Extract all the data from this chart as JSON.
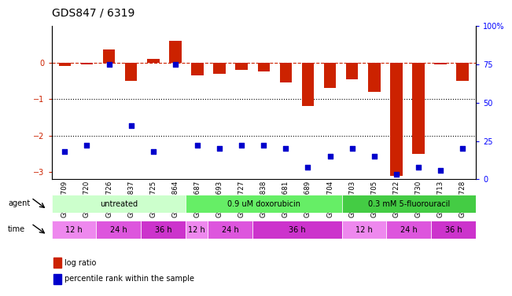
{
  "title": "GDS847 / 6319",
  "samples": [
    "GSM11709",
    "GSM11720",
    "GSM11726",
    "GSM11837",
    "GSM11725",
    "GSM11864",
    "GSM11687",
    "GSM11693",
    "GSM11727",
    "GSM11838",
    "GSM11681",
    "GSM11689",
    "GSM11704",
    "GSM11703",
    "GSM11705",
    "GSM11722",
    "GSM11730",
    "GSM11713",
    "GSM11728"
  ],
  "log_ratio": [
    -0.1,
    -0.05,
    0.35,
    -0.5,
    0.1,
    0.6,
    -0.35,
    -0.3,
    -0.2,
    -0.25,
    -0.55,
    -1.2,
    -0.7,
    -0.45,
    -0.8,
    -3.1,
    -2.5,
    -0.05,
    -0.5
  ],
  "percentile_rank": [
    18,
    22,
    75,
    35,
    18,
    75,
    22,
    20,
    22,
    22,
    20,
    8,
    15,
    20,
    15,
    3,
    8,
    6,
    20
  ],
  "bar_color": "#cc2200",
  "dot_color": "#0000cc",
  "ylim_left": [
    -3.2,
    1.0
  ],
  "ylim_right": [
    0,
    100
  ],
  "yticks_left": [
    0,
    -1,
    -2,
    -3
  ],
  "yticks_right": [
    0,
    25,
    50,
    75,
    100
  ],
  "dotted_lines": [
    -1,
    -2
  ],
  "agent_groups": [
    {
      "label": "untreated",
      "start": 0,
      "end": 6,
      "color": "#ccffcc"
    },
    {
      "label": "0.9 uM doxorubicin",
      "start": 6,
      "end": 13,
      "color": "#66ee66"
    },
    {
      "label": "0.3 mM 5-fluorouracil",
      "start": 13,
      "end": 19,
      "color": "#44cc44"
    }
  ],
  "time_groups": [
    {
      "label": "12 h",
      "start": 0,
      "end": 2,
      "color": "#ee88ee"
    },
    {
      "label": "24 h",
      "start": 2,
      "end": 4,
      "color": "#dd55dd"
    },
    {
      "label": "36 h",
      "start": 4,
      "end": 6,
      "color": "#cc33cc"
    },
    {
      "label": "12 h",
      "start": 6,
      "end": 7,
      "color": "#ee88ee"
    },
    {
      "label": "24 h",
      "start": 7,
      "end": 9,
      "color": "#dd55dd"
    },
    {
      "label": "36 h",
      "start": 9,
      "end": 13,
      "color": "#cc33cc"
    },
    {
      "label": "12 h",
      "start": 13,
      "end": 15,
      "color": "#ee88ee"
    },
    {
      "label": "24 h",
      "start": 15,
      "end": 17,
      "color": "#dd55dd"
    },
    {
      "label": "36 h",
      "start": 17,
      "end": 19,
      "color": "#cc33cc"
    }
  ]
}
